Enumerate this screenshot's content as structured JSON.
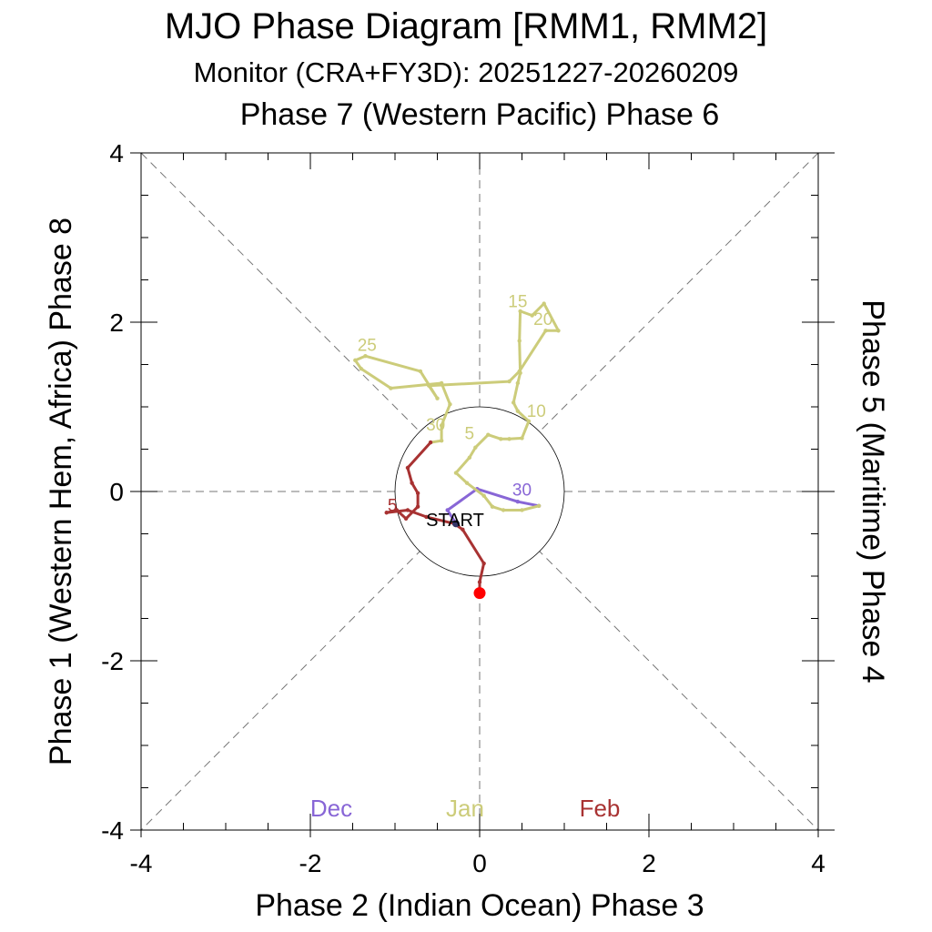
{
  "chart_data": {
    "type": "line",
    "title": "MJO Phase Diagram [RMM1, RMM2]",
    "subtitle": "Monitor (CRA+FY3D): 20251227-20260209",
    "top_label": "Phase 7 (Western Pacific) Phase 6",
    "xlabel": "Phase 2 (Indian Ocean) Phase 3",
    "ylabel_left": "Phase 1 (Western Hem, Africa) Phase 8",
    "ylabel_right": "Phase 5 (Maritime) Phase 4",
    "xlim": [
      -4,
      4
    ],
    "ylim": [
      -4,
      4
    ],
    "x_ticks": [
      "-4",
      "-2",
      "0",
      "2",
      "4"
    ],
    "y_ticks": [
      "4",
      "2",
      "0",
      "-2",
      "-4"
    ],
    "x_tick_values": [
      -4,
      -2,
      0,
      2,
      4
    ],
    "y_tick_values": [
      4,
      2,
      0,
      -2,
      -4
    ],
    "unit_circle_radius": 1,
    "start_label": "START",
    "colors": {
      "dec": "#8866d6",
      "jan": "#cccc7a",
      "feb": "#a83232",
      "end": "#ff0000"
    },
    "series": [
      {
        "name": "Dec",
        "label": "Dec",
        "color": "#8866d6",
        "points": [
          [
            -0.28,
            -0.38
          ],
          [
            -0.38,
            -0.22
          ],
          [
            -0.03,
            0.03
          ],
          [
            0.45,
            -0.12
          ],
          [
            0.7,
            -0.17
          ]
        ],
        "day_labels": [
          {
            "text": "30",
            "x": 0.5,
            "y": -0.05
          }
        ]
      },
      {
        "name": "Jan",
        "label": "Jan",
        "color": "#cccc7a",
        "points": [
          [
            0.7,
            -0.17
          ],
          [
            0.5,
            -0.22
          ],
          [
            0.28,
            -0.22
          ],
          [
            0.15,
            -0.18
          ],
          [
            0.05,
            -0.05
          ],
          [
            -0.15,
            0.1
          ],
          [
            -0.28,
            0.22
          ],
          [
            -0.12,
            0.4
          ],
          [
            -0.05,
            0.52
          ],
          [
            0.1,
            0.67
          ],
          [
            0.25,
            0.62
          ],
          [
            0.35,
            0.62
          ],
          [
            0.5,
            0.63
          ],
          [
            0.58,
            0.83
          ],
          [
            0.45,
            0.95
          ],
          [
            0.4,
            1.05
          ],
          [
            0.45,
            1.28
          ],
          [
            0.48,
            1.4
          ],
          [
            0.47,
            1.78
          ],
          [
            0.48,
            2.13
          ],
          [
            0.62,
            2.08
          ],
          [
            0.76,
            2.22
          ],
          [
            0.93,
            1.9
          ],
          [
            0.78,
            1.9
          ],
          [
            0.47,
            1.42
          ],
          [
            0.35,
            1.3
          ],
          [
            -0.6,
            1.25
          ],
          [
            -0.5,
            1.1
          ],
          [
            -0.7,
            1.42
          ],
          [
            -1.35,
            1.6
          ],
          [
            -1.47,
            1.55
          ],
          [
            -1.4,
            1.45
          ],
          [
            -1.05,
            1.22
          ],
          [
            -0.45,
            1.28
          ],
          [
            -0.35,
            1.03
          ],
          [
            -0.45,
            0.78
          ],
          [
            -0.45,
            0.6
          ],
          [
            -0.58,
            0.58
          ]
        ],
        "day_labels": [
          {
            "text": "5",
            "x": -0.12,
            "y": 0.62
          },
          {
            "text": "10",
            "x": 0.67,
            "y": 0.88
          },
          {
            "text": "15",
            "x": 0.45,
            "y": 2.18
          },
          {
            "text": "20",
            "x": 0.75,
            "y": 1.97
          },
          {
            "text": "25",
            "x": -1.33,
            "y": 1.66
          },
          {
            "text": "30",
            "x": -0.52,
            "y": 0.72
          }
        ]
      },
      {
        "name": "Feb",
        "label": "Feb",
        "color": "#a83232",
        "points": [
          [
            -0.58,
            0.58
          ],
          [
            -0.85,
            0.28
          ],
          [
            -0.8,
            0.1
          ],
          [
            -0.73,
            -0.02
          ],
          [
            -0.73,
            -0.18
          ],
          [
            -0.87,
            -0.32
          ],
          [
            -0.98,
            -0.22
          ],
          [
            -1.1,
            -0.25
          ],
          [
            -0.85,
            -0.22
          ],
          [
            -0.63,
            -0.3
          ],
          [
            -0.3,
            -0.38
          ],
          [
            -0.2,
            -0.45
          ],
          [
            0.05,
            -0.85
          ],
          [
            0.0,
            -1.07
          ],
          [
            0.0,
            -1.2
          ]
        ],
        "day_labels": [
          {
            "text": "5",
            "x": -1.03,
            "y": -0.23
          }
        ]
      }
    ],
    "end_point": [
      0.0,
      -1.2
    ],
    "start_point": [
      -0.28,
      -0.38
    ]
  }
}
